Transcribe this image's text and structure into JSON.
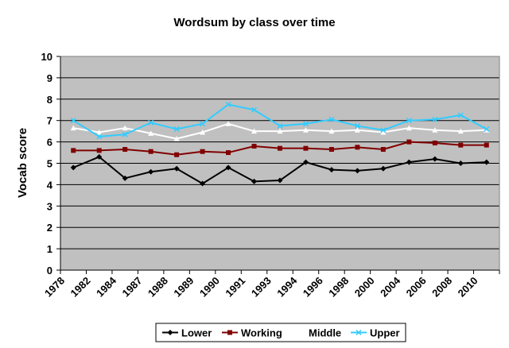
{
  "chart_data": {
    "type": "line",
    "title": "Wordsum by class over time",
    "xlabel": "",
    "ylabel": "Vocab score",
    "ylim": [
      0,
      10
    ],
    "yticks": [
      0,
      1,
      2,
      3,
      4,
      5,
      6,
      7,
      8,
      9,
      10
    ],
    "grid": true,
    "legend": "bottom",
    "categories": [
      "1978",
      "1982",
      "1984",
      "1987",
      "1988",
      "1989",
      "1990",
      "1991",
      "1993",
      "1994",
      "1996",
      "1998",
      "2000",
      "2004",
      "2006",
      "2008",
      "2010"
    ],
    "plot_background": "#c0c0c0",
    "series": [
      {
        "name": "Lower",
        "color": "#000000",
        "marker": "diamond",
        "values": [
          4.8,
          5.3,
          4.3,
          4.6,
          4.75,
          4.05,
          4.8,
          4.15,
          4.2,
          5.05,
          4.7,
          4.65,
          4.75,
          5.05,
          5.2,
          5.0,
          5.05
        ]
      },
      {
        "name": "Working",
        "color": "#800000",
        "marker": "square",
        "values": [
          5.6,
          5.6,
          5.65,
          5.55,
          5.4,
          5.55,
          5.5,
          5.8,
          5.7,
          5.7,
          5.65,
          5.75,
          5.65,
          6.0,
          5.95,
          5.85,
          5.85
        ]
      },
      {
        "name": "Middle",
        "color": "#ffffff",
        "marker": "triangle",
        "values": [
          6.65,
          6.45,
          6.65,
          6.4,
          6.15,
          6.45,
          6.85,
          6.5,
          6.5,
          6.55,
          6.5,
          6.55,
          6.45,
          6.65,
          6.55,
          6.5,
          6.55
        ]
      },
      {
        "name": "Upper",
        "color": "#33ccff",
        "marker": "x",
        "values": [
          7.0,
          6.25,
          6.35,
          6.9,
          6.6,
          6.85,
          7.75,
          7.5,
          6.75,
          6.85,
          7.05,
          6.75,
          6.55,
          7.0,
          7.05,
          7.25,
          6.6
        ]
      }
    ]
  }
}
